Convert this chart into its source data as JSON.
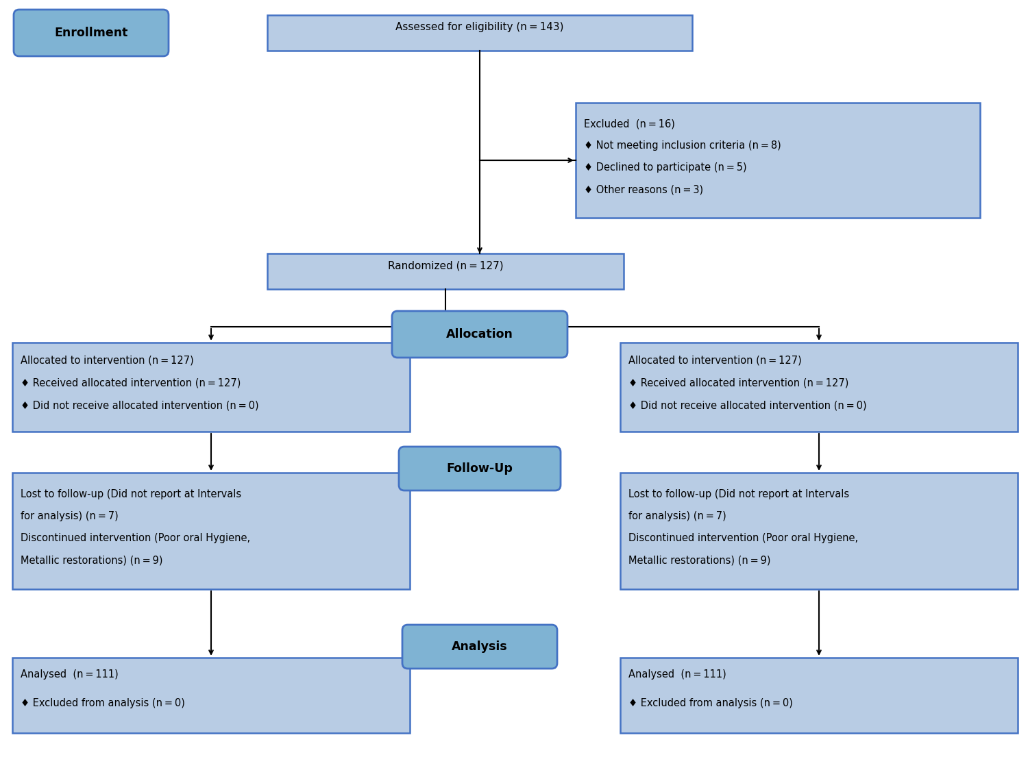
{
  "bg_color": "#ffffff",
  "box_fill": "#b8cce4",
  "box_edge": "#4472c4",
  "label_fill": "#7fb3d3",
  "label_edge": "#4472c4",
  "text_color": "#000000",
  "arrow_color": "#000000",
  "font_size": 10.5,
  "label_font_size": 12.5,
  "enrollment_label": "Enrollment",
  "allocation_label": "Allocation",
  "followup_label": "Follow-Up",
  "analysis_label": "Analysis",
  "box1_lines": [
    "Assessed for eligibility (n = 143)"
  ],
  "box2_lines": [
    "Excluded  (n = 16)",
    "♦ Not meeting inclusion criteria (n = 8)",
    "♦ Declined to participate (n = 5)",
    "♦ Other reasons (n = 3)"
  ],
  "box3_lines": [
    "Randomized (n = 127)"
  ],
  "box4_lines": [
    "Allocated to intervention (n = 127)",
    "♦ Received allocated intervention (n = 127)",
    "♦ Did not receive allocated intervention (n = 0)"
  ],
  "box5_lines": [
    "Lost to follow-up (Did not report at Intervals",
    "for analysis) (n = 7)",
    "Discontinued intervention (Poor oral Hygiene,",
    "Metallic restorations) (n = 9)"
  ],
  "box6_lines": [
    "Analysed  (n = 111)",
    "♦ Excluded from analysis (n = 0)"
  ]
}
